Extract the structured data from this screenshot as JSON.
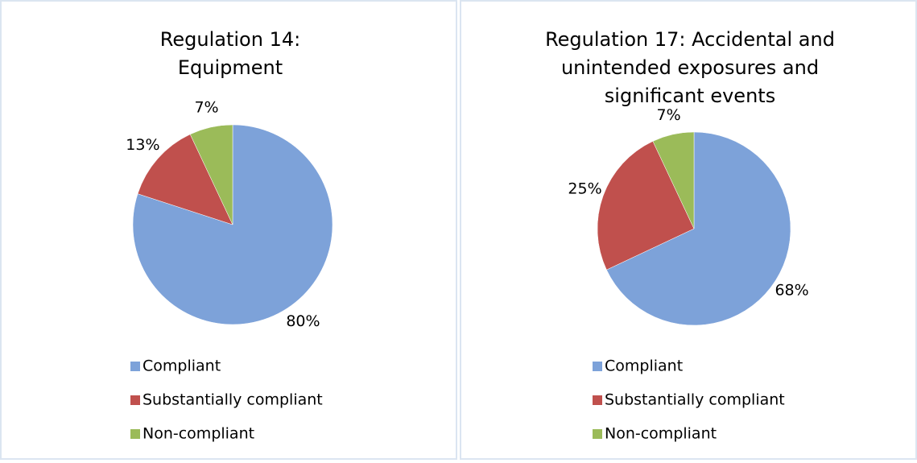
{
  "chart_data": [
    {
      "type": "pie",
      "title": "Regulation 14: Equipment",
      "categories": [
        "Compliant",
        "Substantially compliant",
        "Non-compliant"
      ],
      "values": [
        80,
        13,
        7
      ],
      "value_labels": [
        "80%",
        "13%",
        "7%"
      ],
      "colors": [
        "#7da2d9",
        "#c0504d",
        "#9bbb59"
      ]
    },
    {
      "type": "pie",
      "title": "Regulation 17: Accidental and unintended exposures and significant events",
      "categories": [
        "Compliant",
        "Substantially compliant",
        "Non-compliant"
      ],
      "values": [
        68,
        25,
        7
      ],
      "value_labels": [
        "68%",
        "25%",
        "7%"
      ],
      "colors": [
        "#7da2d9",
        "#c0504d",
        "#9bbb59"
      ]
    }
  ]
}
